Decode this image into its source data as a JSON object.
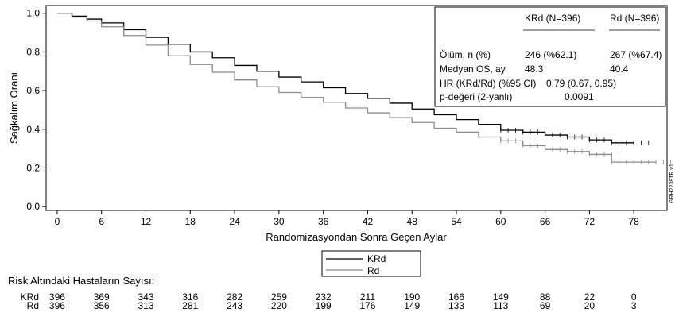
{
  "chart_data": {
    "type": "line",
    "xlabel": "Randomizasyondan Sonra Geçen Aylar",
    "ylabel": "Sağkalım Oranı",
    "xlim": [
      -1.5,
      82.5
    ],
    "ylim": [
      -0.02,
      1.04
    ],
    "xticks": [
      0,
      6,
      12,
      18,
      24,
      30,
      36,
      42,
      48,
      54,
      60,
      66,
      72,
      78
    ],
    "yticks": [
      0.0,
      0.2,
      0.4,
      0.6,
      0.8,
      1.0
    ],
    "ytick_labels": [
      "0.0",
      "0.2",
      "0.4",
      "0.6",
      "0.8",
      "1.0"
    ],
    "side_label": "GRH2238TR.v1",
    "series": [
      {
        "name": "KRd",
        "color": "#000000",
        "x": [
          0,
          2,
          4,
          6,
          9,
          12,
          15,
          18,
          21,
          24,
          27,
          30,
          33,
          36,
          39,
          42,
          45,
          48,
          51,
          54,
          57,
          60,
          63,
          66,
          69,
          72,
          75,
          78
        ],
        "y": [
          1.0,
          0.985,
          0.97,
          0.95,
          0.915,
          0.875,
          0.84,
          0.8,
          0.77,
          0.73,
          0.7,
          0.67,
          0.645,
          0.615,
          0.585,
          0.56,
          0.535,
          0.505,
          0.475,
          0.45,
          0.425,
          0.395,
          0.385,
          0.37,
          0.36,
          0.345,
          0.33,
          0.33
        ]
      },
      {
        "name": "Rd",
        "color": "#8c8c8c",
        "x": [
          0,
          2,
          4,
          6,
          9,
          12,
          15,
          18,
          21,
          24,
          27,
          30,
          33,
          36,
          39,
          42,
          45,
          48,
          51,
          54,
          57,
          60,
          63,
          66,
          69,
          72,
          74,
          75,
          78,
          81
        ],
        "y": [
          1.0,
          0.98,
          0.96,
          0.93,
          0.885,
          0.835,
          0.78,
          0.735,
          0.695,
          0.655,
          0.62,
          0.59,
          0.565,
          0.54,
          0.51,
          0.485,
          0.46,
          0.435,
          0.405,
          0.385,
          0.36,
          0.34,
          0.315,
          0.295,
          0.285,
          0.27,
          0.27,
          0.23,
          0.23,
          0.23
        ]
      }
    ],
    "legend_position": "bottom-center",
    "legend": [
      "KRd",
      "Rd"
    ],
    "stats_table": {
      "headers": [
        "KRd (N=396)",
        "Rd (N=396)"
      ],
      "rows": [
        {
          "label": "Ölüm, n (%)",
          "krd": "246 (%62.1)",
          "rd": "267 (%67.4)"
        },
        {
          "label": "Medyan OS, ay",
          "krd": "48.3",
          "rd": "40.4"
        },
        {
          "label": "HR (KRd/Rd) (%95 CI)",
          "value": "0.79 (0.67, 0.95)"
        },
        {
          "label": "p-değeri (2-yanlı)",
          "value": "0.0091"
        }
      ]
    },
    "risk_table": {
      "title": "Risk Altındaki Hastaların Sayısı:",
      "rows": [
        {
          "name": "KRd",
          "values": [
            "396",
            "369",
            "343",
            "316",
            "282",
            "259",
            "232",
            "211",
            "190",
            "166",
            "149",
            "88",
            "22",
            "0"
          ]
        },
        {
          "name": "Rd",
          "values": [
            "396",
            "356",
            "313",
            "281",
            "243",
            "220",
            "199",
            "176",
            "149",
            "133",
            "113",
            "69",
            "20",
            "3"
          ]
        }
      ]
    }
  }
}
